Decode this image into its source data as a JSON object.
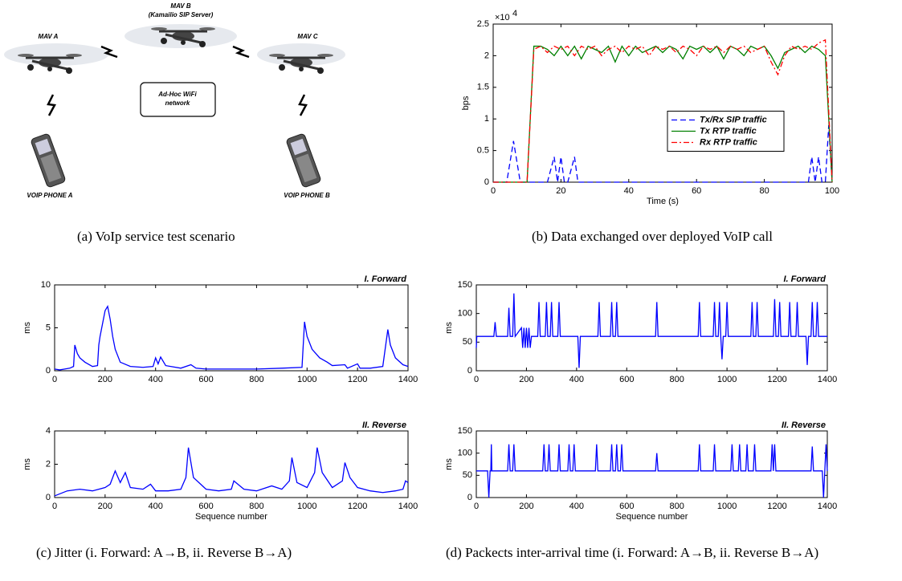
{
  "diagram": {
    "mavs": [
      {
        "label": "MAV A"
      },
      {
        "label": "MAV B",
        "sublabel": "(Kamailio SIP Server)"
      },
      {
        "label": "MAV C"
      }
    ],
    "network": {
      "lines": [
        "Ad-Hoc WiFi",
        "network"
      ]
    },
    "phones": [
      {
        "label": "VOIP PHONE A"
      },
      {
        "label": "VOIP PHONE B"
      }
    ]
  },
  "captions": [
    "(a) VoIp service test scenario",
    "(b) Data exchanged over deployed VoIP call",
    "(c) Jitter (i. Forward: A→B, ii. Reverse B→A)",
    "(d) Packects inter-arrival time (i. Forward: A→B, ii. Reverse B→A)"
  ],
  "chart_data": [
    {
      "type": "line",
      "xlabel": "Time (s)",
      "ylabel": "bps",
      "y_multiplier": {
        "base": "×10",
        "exponent": "4"
      },
      "xlim": [
        0,
        100
      ],
      "ylim": [
        0,
        25000
      ],
      "xticks": [
        0,
        20,
        40,
        60,
        80,
        100
      ],
      "yticks": [
        0,
        {
          "value": 5000,
          "label": "0.5"
        },
        {
          "value": 10000,
          "label": "1"
        },
        {
          "value": 15000,
          "label": "1.5"
        },
        {
          "value": 20000,
          "label": "2"
        },
        {
          "value": 25000,
          "label": "2.5"
        }
      ],
      "legend": "center-right",
      "x": [
        0,
        2,
        4,
        6,
        8,
        10,
        12,
        14,
        16,
        18,
        20,
        22,
        24,
        26,
        28,
        30,
        32,
        34,
        36,
        38,
        40,
        42,
        44,
        46,
        48,
        50,
        52,
        54,
        56,
        58,
        60,
        62,
        64,
        66,
        68,
        70,
        72,
        74,
        76,
        78,
        80,
        82,
        84,
        86,
        88,
        90,
        92,
        94,
        96,
        98,
        100
      ],
      "series": [
        {
          "name": "Tx/Rx SIP traffic",
          "color": "#0000ff",
          "dash": "dashed",
          "x": [
            0,
            4,
            6,
            8,
            16,
            18,
            19,
            20,
            21,
            22,
            24,
            25,
            90,
            93,
            94,
            95,
            96,
            97,
            98,
            99,
            100
          ],
          "values": [
            0,
            0,
            6500,
            0,
            0,
            4000,
            0,
            4000,
            0,
            0,
            4000,
            0,
            0,
            0,
            4000,
            0,
            4000,
            0,
            0,
            9000,
            0
          ]
        },
        {
          "name": "Tx RTP traffic",
          "color": "#008000",
          "dash": "solid",
          "values": [
            0,
            0,
            0,
            0,
            0,
            0,
            21500,
            21500,
            21000,
            20000,
            21500,
            20000,
            21500,
            19500,
            21500,
            21000,
            20500,
            21500,
            19000,
            21500,
            20000,
            21500,
            20500,
            21000,
            21500,
            20500,
            21500,
            21000,
            19500,
            21500,
            21000,
            21500,
            20500,
            21500,
            19500,
            21500,
            21000,
            20000,
            21500,
            21000,
            21500,
            20000,
            18000,
            20500,
            21000,
            21500,
            20500,
            21500,
            21000,
            20000,
            0
          ]
        },
        {
          "name": "Rx RTP traffic",
          "color": "#ff0000",
          "dash": "dashdot",
          "values": [
            0,
            0,
            0,
            0,
            0,
            0,
            21000,
            21500,
            20500,
            21500,
            21000,
            21500,
            20000,
            21500,
            21000,
            21500,
            20000,
            21000,
            21500,
            20500,
            21500,
            21000,
            21500,
            20000,
            21500,
            21000,
            21500,
            20500,
            21500,
            21000,
            20000,
            21500,
            21000,
            21500,
            20500,
            21500,
            21000,
            21500,
            20500,
            21000,
            21500,
            19000,
            17000,
            20000,
            21500,
            21000,
            21500,
            21000,
            22000,
            22500,
            0
          ]
        }
      ]
    },
    {
      "type": "line",
      "annotation": "I. Forward",
      "ylabel": "ms",
      "xlim": [
        0,
        1400
      ],
      "ylim": [
        0,
        10
      ],
      "xticks": [
        0,
        200,
        400,
        600,
        800,
        1000,
        1200,
        1400
      ],
      "yticks": [
        0,
        5,
        10
      ],
      "series": [
        {
          "color": "#0000ff",
          "dash": "solid",
          "x": [
            0,
            20,
            40,
            60,
            75,
            80,
            90,
            100,
            120,
            150,
            170,
            175,
            180,
            190,
            200,
            210,
            220,
            230,
            240,
            260,
            300,
            350,
            390,
            400,
            410,
            420,
            440,
            500,
            540,
            560,
            600,
            700,
            800,
            900,
            980,
            990,
            1000,
            1020,
            1050,
            1080,
            1100,
            1150,
            1160,
            1200,
            1210,
            1250,
            1300,
            1320,
            1330,
            1350,
            1380,
            1400
          ],
          "values": [
            0.2,
            0.1,
            0.2,
            0.3,
            0.5,
            3,
            2,
            1.5,
            1,
            0.5,
            0.6,
            3,
            4,
            5.5,
            7,
            7.5,
            6,
            4,
            2.5,
            1,
            0.5,
            0.4,
            0.5,
            1.5,
            0.8,
            1.6,
            0.6,
            0.3,
            0.7,
            0.3,
            0.2,
            0.2,
            0.2,
            0.3,
            0.4,
            5.7,
            4,
            2.5,
            1.5,
            1,
            0.6,
            0.7,
            0.3,
            0.8,
            0.3,
            0.3,
            0.5,
            4.8,
            3,
            1.5,
            0.7,
            0.5
          ]
        }
      ]
    },
    {
      "type": "line",
      "annotation": "II. Reverse",
      "ylabel": "ms",
      "xlabel": "Sequence number",
      "xlim": [
        0,
        1400
      ],
      "ylim": [
        0,
        4
      ],
      "xticks": [
        0,
        200,
        400,
        600,
        800,
        1000,
        1200,
        1400
      ],
      "yticks": [
        0,
        2,
        4
      ],
      "series": [
        {
          "color": "#0000ff",
          "dash": "solid",
          "x": [
            0,
            50,
            100,
            150,
            200,
            220,
            240,
            260,
            280,
            300,
            350,
            380,
            400,
            450,
            500,
            520,
            530,
            550,
            600,
            650,
            700,
            710,
            750,
            800,
            860,
            900,
            930,
            940,
            960,
            1000,
            1030,
            1040,
            1060,
            1100,
            1140,
            1150,
            1170,
            1200,
            1250,
            1300,
            1350,
            1380,
            1390,
            1400
          ],
          "values": [
            0.1,
            0.4,
            0.5,
            0.4,
            0.6,
            0.8,
            1.6,
            0.9,
            1.5,
            0.6,
            0.5,
            0.8,
            0.4,
            0.4,
            0.5,
            1.2,
            3,
            1.2,
            0.5,
            0.4,
            0.5,
            1,
            0.5,
            0.4,
            0.7,
            0.5,
            1,
            2.4,
            0.9,
            0.6,
            1.5,
            3,
            1.5,
            0.6,
            1,
            2.1,
            1.2,
            0.6,
            0.4,
            0.3,
            0.4,
            0.5,
            1,
            0.9
          ]
        }
      ]
    },
    {
      "type": "line",
      "annotation": "I. Forward",
      "ylabel": "ms",
      "xlim": [
        0,
        1400
      ],
      "ylim": [
        0,
        150
      ],
      "xticks": [
        0,
        200,
        400,
        600,
        800,
        1000,
        1200,
        1400
      ],
      "yticks": [
        0,
        50,
        100,
        150
      ],
      "series": [
        {
          "color": "#0000ff",
          "dash": "solid",
          "x": [
            0,
            2,
            70,
            75,
            80,
            125,
            130,
            135,
            145,
            150,
            155,
            180,
            185,
            190,
            195,
            200,
            205,
            210,
            215,
            220,
            245,
            250,
            255,
            275,
            280,
            285,
            295,
            300,
            305,
            325,
            330,
            335,
            405,
            410,
            415,
            485,
            490,
            495,
            535,
            540,
            545,
            555,
            560,
            565,
            715,
            720,
            725,
            885,
            890,
            895,
            945,
            950,
            955,
            965,
            970,
            975,
            980,
            985,
            995,
            1000,
            1005,
            1095,
            1100,
            1105,
            1115,
            1120,
            1125,
            1185,
            1190,
            1195,
            1205,
            1210,
            1215,
            1245,
            1250,
            1255,
            1275,
            1280,
            1285,
            1315,
            1320,
            1325,
            1335,
            1340,
            1345,
            1355,
            1360,
            1365,
            1400
          ],
          "values": [
            40,
            60,
            60,
            85,
            60,
            60,
            110,
            60,
            60,
            135,
            60,
            75,
            40,
            75,
            40,
            75,
            40,
            75,
            40,
            60,
            60,
            120,
            60,
            60,
            120,
            60,
            60,
            120,
            60,
            60,
            120,
            60,
            60,
            5,
            60,
            60,
            120,
            60,
            60,
            120,
            60,
            60,
            120,
            60,
            60,
            120,
            60,
            60,
            120,
            60,
            60,
            120,
            60,
            60,
            120,
            60,
            20,
            60,
            60,
            120,
            60,
            60,
            120,
            60,
            60,
            120,
            60,
            60,
            125,
            60,
            60,
            120,
            60,
            60,
            120,
            60,
            60,
            120,
            60,
            60,
            10,
            60,
            60,
            120,
            60,
            60,
            120,
            60,
            60
          ]
        }
      ]
    },
    {
      "type": "line",
      "annotation": "II. Reverse",
      "ylabel": "ms",
      "xlabel": "Sequence number",
      "xlim": [
        0,
        1400
      ],
      "ylim": [
        0,
        150
      ],
      "xticks": [
        0,
        200,
        400,
        600,
        800,
        1000,
        1200,
        1400
      ],
      "yticks": [
        0,
        50,
        100,
        150
      ],
      "series": [
        {
          "color": "#0000ff",
          "dash": "solid",
          "x": [
            0,
            45,
            50,
            55,
            58,
            60,
            62,
            125,
            130,
            135,
            145,
            150,
            155,
            265,
            270,
            275,
            285,
            290,
            295,
            325,
            330,
            335,
            365,
            370,
            375,
            385,
            390,
            395,
            475,
            480,
            485,
            535,
            540,
            545,
            555,
            560,
            565,
            575,
            580,
            585,
            715,
            720,
            725,
            885,
            890,
            895,
            945,
            950,
            955,
            1015,
            1020,
            1025,
            1045,
            1050,
            1055,
            1075,
            1080,
            1085,
            1105,
            1110,
            1115,
            1175,
            1180,
            1185,
            1190,
            1195,
            1335,
            1340,
            1345,
            1380,
            1385,
            1390,
            1395,
            1400
          ],
          "values": [
            60,
            60,
            0,
            60,
            60,
            120,
            60,
            60,
            120,
            60,
            60,
            120,
            60,
            60,
            120,
            60,
            60,
            120,
            60,
            60,
            120,
            60,
            60,
            120,
            60,
            60,
            120,
            60,
            60,
            120,
            60,
            60,
            120,
            60,
            60,
            120,
            60,
            60,
            120,
            60,
            60,
            100,
            60,
            60,
            120,
            60,
            60,
            120,
            60,
            60,
            120,
            60,
            60,
            120,
            60,
            60,
            120,
            60,
            60,
            120,
            60,
            60,
            120,
            60,
            120,
            60,
            60,
            115,
            60,
            60,
            0,
            60,
            120,
            60
          ]
        }
      ]
    }
  ]
}
